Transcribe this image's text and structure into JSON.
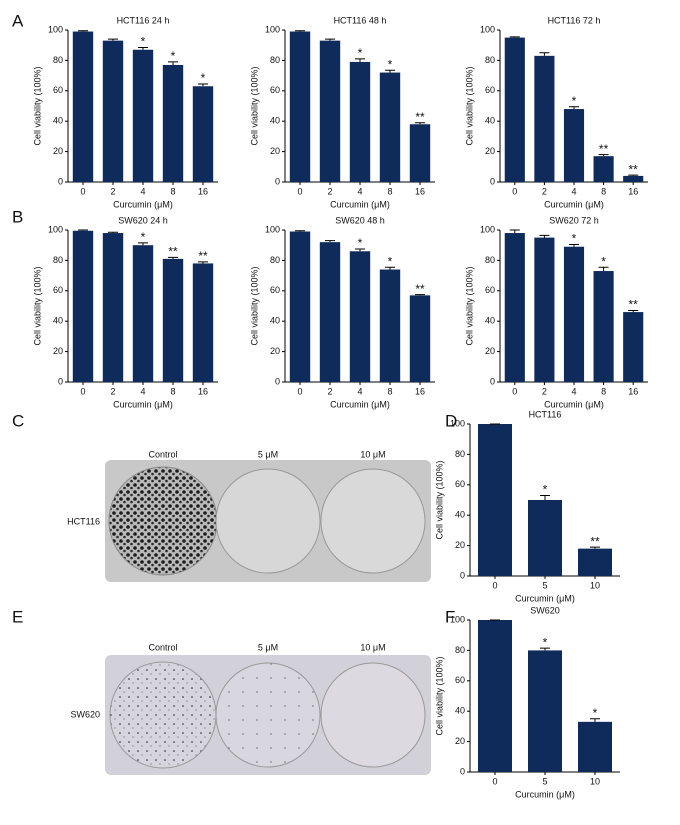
{
  "panel_labels": [
    "A",
    "B",
    "C",
    "D",
    "E",
    "F"
  ],
  "photos": [
    {
      "columns": [
        "Control",
        "5 μM",
        "10 μM"
      ],
      "row_label": "HCT116"
    },
    {
      "columns": [
        "Control",
        "5 μM",
        "10 μM"
      ],
      "row_label": "SW620"
    }
  ],
  "chart_data": [
    {
      "type": "bar",
      "title": "HCT116 24 h",
      "x_label": "Curcumin (μM)",
      "y_label": "Cell viability (100%)",
      "categories": [
        "0",
        "2",
        "4",
        "8",
        "16"
      ],
      "values": [
        99,
        93,
        87,
        77,
        63
      ],
      "errors": [
        0.5,
        1,
        1.5,
        2,
        1.5
      ],
      "significance": [
        null,
        null,
        "*",
        "*",
        "*"
      ],
      "color": "#0f2b5b",
      "ylim": [
        0,
        100
      ],
      "yticks": [
        0,
        20,
        40,
        60,
        80,
        100
      ]
    },
    {
      "type": "bar",
      "title": "HCT116 48 h",
      "x_label": "Curcumin (μM)",
      "y_label": "Cell viability (100%)",
      "categories": [
        "0",
        "2",
        "4",
        "8",
        "16"
      ],
      "values": [
        99,
        93,
        79,
        72,
        38
      ],
      "errors": [
        0.5,
        1,
        2,
        1.5,
        1
      ],
      "significance": [
        null,
        null,
        "*",
        "*",
        "**"
      ],
      "color": "#0f2b5b",
      "ylim": [
        0,
        100
      ],
      "yticks": [
        0,
        20,
        40,
        60,
        80,
        100
      ]
    },
    {
      "type": "bar",
      "title": "HCT116 72 h",
      "x_label": "Curcumin (μM)",
      "y_label": "Cell viability (100%)",
      "categories": [
        "0",
        "2",
        "4",
        "8",
        "16"
      ],
      "values": [
        95,
        83,
        48,
        17,
        4
      ],
      "errors": [
        0.5,
        2,
        1.5,
        1,
        0.5
      ],
      "significance": [
        null,
        null,
        "*",
        "**",
        "**"
      ],
      "color": "#0f2b5b",
      "ylim": [
        0,
        100
      ],
      "yticks": [
        0,
        20,
        40,
        60,
        80,
        100
      ]
    },
    {
      "type": "bar",
      "title": "SW620 24 h",
      "x_label": "Curcumin (μM)",
      "y_label": "Cell viability (100%)",
      "categories": [
        "0",
        "2",
        "4",
        "8",
        "16"
      ],
      "values": [
        99.5,
        98,
        90,
        81,
        78
      ],
      "errors": [
        0.5,
        0.5,
        1.5,
        1,
        1
      ],
      "significance": [
        null,
        null,
        "*",
        "**",
        "**"
      ],
      "color": "#0f2b5b",
      "ylim": [
        0,
        100
      ],
      "yticks": [
        0,
        20,
        40,
        60,
        80,
        100
      ]
    },
    {
      "type": "bar",
      "title": "SW620 48 h",
      "x_label": "Curcumin (μM)",
      "y_label": "Cell viability (100%)",
      "categories": [
        "0",
        "2",
        "4",
        "8",
        "16"
      ],
      "values": [
        99,
        92,
        86,
        74,
        57
      ],
      "errors": [
        0.5,
        1,
        1.5,
        1.5,
        0.5
      ],
      "significance": [
        null,
        null,
        "*",
        "*",
        "**"
      ],
      "color": "#0f2b5b",
      "ylim": [
        0,
        100
      ],
      "yticks": [
        0,
        20,
        40,
        60,
        80,
        100
      ]
    },
    {
      "type": "bar",
      "title": "SW620 72 h",
      "x_label": "Curcumin (μM)",
      "y_label": "Cell viability (100%)",
      "categories": [
        "0",
        "2",
        "4",
        "8",
        "16"
      ],
      "values": [
        98,
        95,
        89,
        73,
        46
      ],
      "errors": [
        2,
        1.5,
        1.5,
        2.5,
        1
      ],
      "significance": [
        null,
        null,
        "*",
        "*",
        "**"
      ],
      "color": "#0f2b5b",
      "ylim": [
        0,
        100
      ],
      "yticks": [
        0,
        20,
        40,
        60,
        80,
        100
      ]
    },
    {
      "type": "bar",
      "title": "HCT116",
      "x_label": "Curcumin (μM)",
      "y_label": "Cell viability (100%)",
      "categories": [
        "0",
        "5",
        "10"
      ],
      "values": [
        100,
        50,
        18
      ],
      "errors": [
        0,
        3,
        1
      ],
      "significance": [
        null,
        "*",
        "**"
      ],
      "color": "#0f2b5b",
      "ylim": [
        0,
        100
      ],
      "yticks": [
        0,
        20,
        40,
        60,
        80,
        100
      ]
    },
    {
      "type": "bar",
      "title": "SW620",
      "x_label": "Curcumin (μM)",
      "y_label": "Cell viability (100%)",
      "categories": [
        "0",
        "5",
        "10"
      ],
      "values": [
        100,
        80,
        33
      ],
      "errors": [
        0,
        1.5,
        2
      ],
      "significance": [
        null,
        "*",
        "*"
      ],
      "color": "#0f2b5b",
      "ylim": [
        0,
        100
      ],
      "yticks": [
        0,
        20,
        40,
        60,
        80,
        100
      ]
    }
  ]
}
